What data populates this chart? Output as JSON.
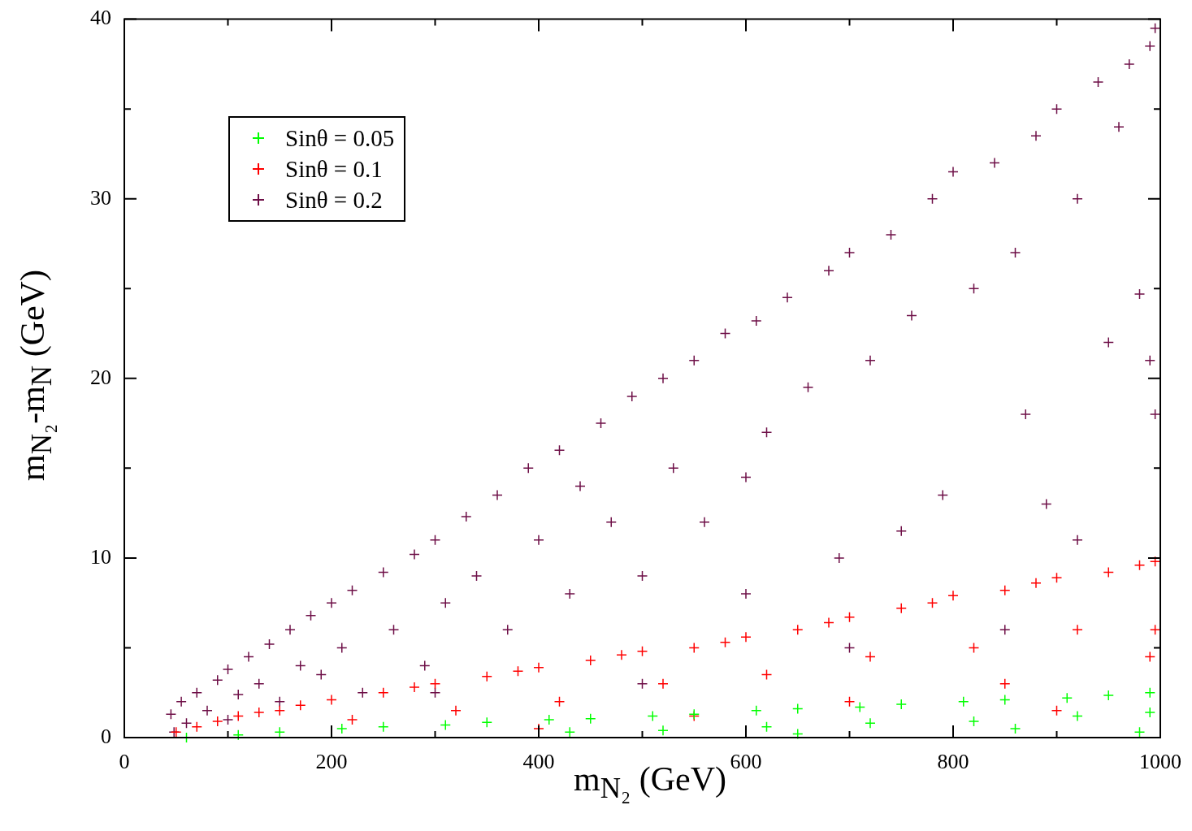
{
  "chart_data": {
    "type": "scatter",
    "xlabel": "m$_{N₂}$ (GeV)",
    "ylabel": "m$_{N₂}$-m$_{N}$ (GeV)",
    "xlim": [
      0,
      1000
    ],
    "ylim": [
      0,
      40
    ],
    "xticks": [
      0,
      {
        "value": 100,
        "label": null
      },
      200,
      {
        "value": 300,
        "label": null
      },
      400,
      {
        "value": 500,
        "label": null
      },
      600,
      {
        "value": 700,
        "label": null
      },
      800,
      {
        "value": 900,
        "label": null
      },
      1000
    ],
    "yticks": [
      0,
      {
        "value": 5,
        "label": null
      },
      10,
      {
        "value": 15,
        "label": null
      },
      20,
      {
        "value": 25,
        "label": null
      },
      30,
      {
        "value": 35,
        "label": null
      },
      40
    ],
    "legend": "top left",
    "marker": "cross",
    "series": [
      {
        "name": "Sinθ = 0.05",
        "color": "#00ff00",
        "x": [
          60,
          110,
          150,
          210,
          250,
          310,
          350,
          410,
          450,
          510,
          550,
          610,
          650,
          710,
          750,
          810,
          850,
          910,
          950,
          990,
          520,
          620,
          720,
          820,
          920,
          990,
          980,
          860,
          650,
          430
        ],
        "values": [
          0,
          0.15,
          0.3,
          0.5,
          0.6,
          0.7,
          0.85,
          1,
          1.05,
          1.2,
          1.3,
          1.5,
          1.6,
          1.7,
          1.85,
          2,
          2.1,
          2.2,
          2.35,
          2.5,
          0.4,
          0.6,
          0.8,
          0.9,
          1.2,
          1.4,
          0.3,
          0.5,
          0.2,
          0.3
        ]
      },
      {
        "name": "Sinθ = 0.1",
        "color": "#ff0000",
        "x": [
          50,
          70,
          90,
          110,
          130,
          150,
          170,
          200,
          220,
          250,
          280,
          300,
          320,
          350,
          380,
          400,
          420,
          450,
          480,
          500,
          520,
          550,
          580,
          600,
          620,
          650,
          680,
          700,
          720,
          750,
          780,
          800,
          820,
          850,
          880,
          900,
          920,
          950,
          980,
          995,
          995,
          990,
          850,
          700,
          550,
          900,
          400
        ],
        "values": [
          0.3,
          0.6,
          0.9,
          1.2,
          1.4,
          1.5,
          1.8,
          2.1,
          1,
          2.5,
          2.8,
          3,
          1.5,
          3.4,
          3.7,
          3.9,
          2,
          4.3,
          4.6,
          4.8,
          3,
          5,
          5.3,
          5.6,
          3.5,
          6,
          6.4,
          6.7,
          4.5,
          7.2,
          7.5,
          7.9,
          5,
          8.2,
          8.6,
          8.9,
          6,
          9.2,
          9.6,
          9.8,
          6,
          4.5,
          3,
          2,
          1.2,
          1.5,
          0.5
        ]
      },
      {
        "name": "Sinθ = 0.2",
        "color": "#6e0f47",
        "x": [
          45,
          48,
          55,
          60,
          70,
          80,
          90,
          100,
          100,
          110,
          120,
          130,
          140,
          150,
          160,
          170,
          180,
          190,
          200,
          210,
          220,
          230,
          250,
          260,
          280,
          290,
          300,
          310,
          330,
          340,
          360,
          370,
          390,
          400,
          420,
          430,
          440,
          460,
          470,
          490,
          500,
          520,
          530,
          550,
          560,
          580,
          600,
          610,
          620,
          640,
          660,
          680,
          690,
          700,
          720,
          740,
          760,
          780,
          790,
          800,
          820,
          840,
          860,
          870,
          880,
          890,
          900,
          920,
          940,
          950,
          960,
          970,
          980,
          990,
          995,
          995,
          990,
          850,
          700,
          500,
          300,
          600,
          750,
          920
        ],
        "values": [
          1.3,
          0.3,
          2,
          0.8,
          2.5,
          1.5,
          3.2,
          3.8,
          1,
          2.4,
          4.5,
          3,
          5.2,
          2,
          6,
          4,
          6.8,
          3.5,
          7.5,
          5,
          8.2,
          2.5,
          9.2,
          6,
          10.2,
          4,
          11,
          7.5,
          12.3,
          9,
          13.5,
          6,
          15,
          11,
          16,
          8,
          14,
          17.5,
          12,
          19,
          9,
          20,
          15,
          21,
          12,
          22.5,
          8,
          23.2,
          17,
          24.5,
          19.5,
          26,
          10,
          27,
          21,
          28,
          23.5,
          30,
          13.5,
          31.5,
          25,
          32,
          27,
          18,
          33.5,
          13,
          35,
          30,
          36.5,
          22,
          34,
          37.5,
          24.7,
          38.5,
          39.5,
          18,
          21,
          6,
          5,
          3,
          2.5,
          14.5,
          11.5,
          11
        ]
      }
    ]
  }
}
